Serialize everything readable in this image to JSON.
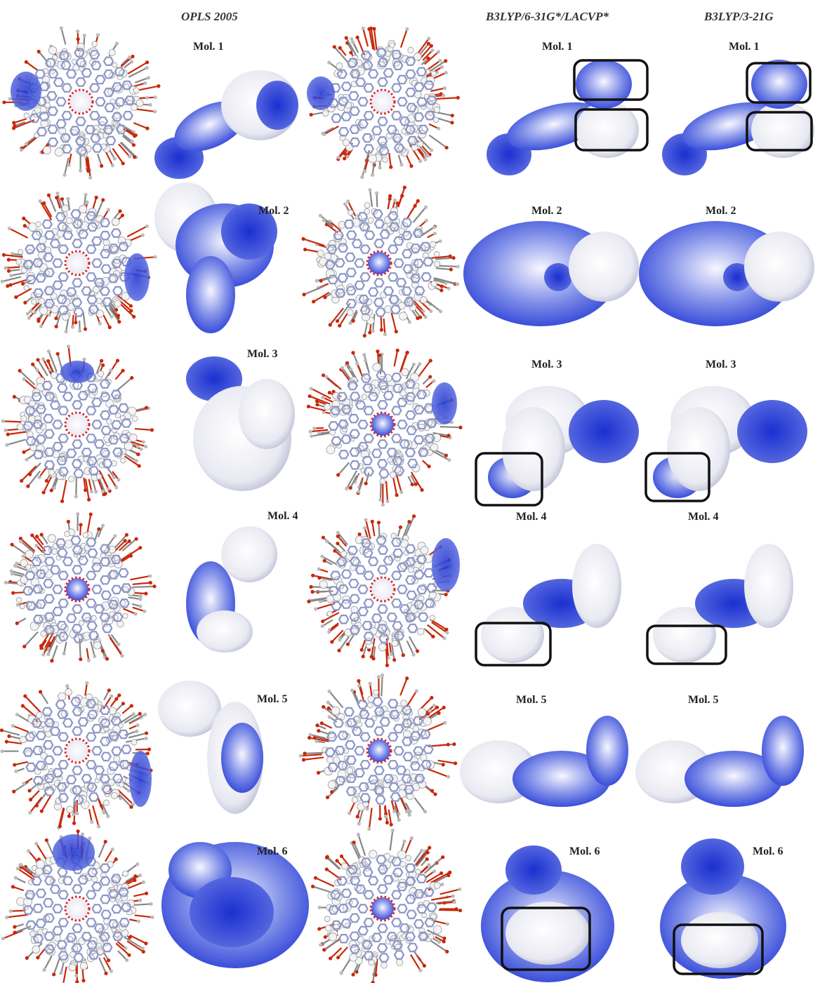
{
  "figure": {
    "headers": {
      "opls": "OPLS 2005",
      "b3lyp_6_31g": "B3LYP/6-31G*/LACVP*",
      "b3lyp_3_21g": "B3LYP/3-21G"
    },
    "rows": [
      {
        "label": "Mol. 1",
        "boxes_631": 2,
        "boxes_321": 2
      },
      {
        "label": "Mol. 2",
        "boxes_631": 0,
        "boxes_321": 0
      },
      {
        "label": "Mol. 3",
        "boxes_631": 1,
        "boxes_321": 1
      },
      {
        "label": "Mol. 4",
        "boxes_631": 1,
        "boxes_321": 1
      },
      {
        "label": "Mol. 5",
        "boxes_631": 0,
        "boxes_321": 0
      },
      {
        "label": "Mol. 6",
        "boxes_631": 1,
        "boxes_321": 1
      }
    ],
    "colors": {
      "positive": "#2a3fd6",
      "neutral": "#f2f2f2",
      "negative": "#d0422c",
      "carbon": "#8c96c8",
      "oxygen": "#c8280a",
      "box": "#111111"
    }
  }
}
